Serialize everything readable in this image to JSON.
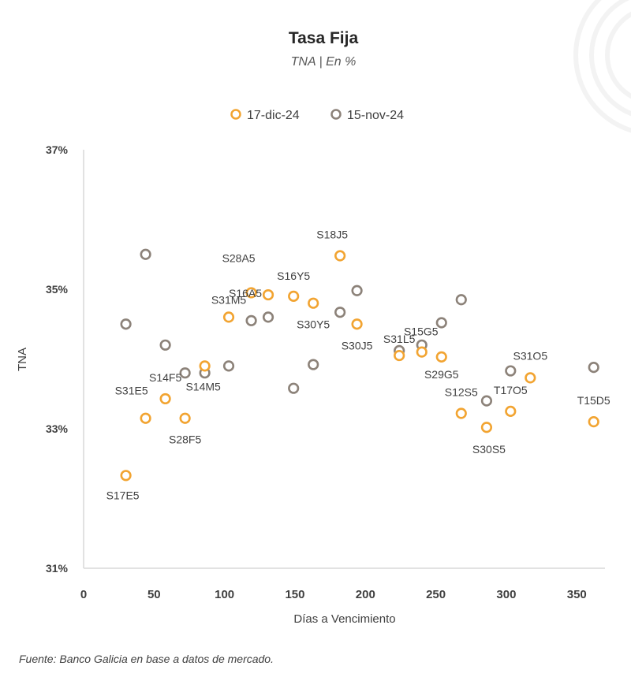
{
  "chart_data": {
    "type": "scatter",
    "title": "Tasa Fija",
    "subtitle": "TNA | En %",
    "xlabel": "Días a Vencimiento",
    "ylabel": "TNA",
    "xlim": [
      0,
      370
    ],
    "ylim": [
      31,
      37
    ],
    "xticks": [
      0,
      50,
      100,
      150,
      200,
      250,
      300,
      350
    ],
    "yticks": [
      31,
      33,
      35,
      37
    ],
    "ytick_labels": [
      "31%",
      "33%",
      "35%",
      "37%"
    ],
    "legend_position": "top-center",
    "series": [
      {
        "name": "17-dic-24",
        "color": "#f2a431",
        "points": [
          {
            "x": 30,
            "y": 32.33,
            "label": "S17E5"
          },
          {
            "x": 44,
            "y": 33.15,
            "label": "S31E5"
          },
          {
            "x": 58,
            "y": 33.43,
            "label": "S14F5"
          },
          {
            "x": 72,
            "y": 33.15,
            "label": "S28F5"
          },
          {
            "x": 86,
            "y": 33.9,
            "label": "S14M5"
          },
          {
            "x": 103,
            "y": 34.6,
            "label": "S31M5"
          },
          {
            "x": 119,
            "y": 34.95,
            "label": "S28A5"
          },
          {
            "x": 131,
            "y": 34.92,
            "label": "S16A5"
          },
          {
            "x": 149,
            "y": 34.9,
            "label": "S16Y5"
          },
          {
            "x": 163,
            "y": 34.8,
            "label": "S30Y5"
          },
          {
            "x": 182,
            "y": 35.48,
            "label": "S18J5"
          },
          {
            "x": 194,
            "y": 34.5,
            "label": "S30J5"
          },
          {
            "x": 224,
            "y": 34.05,
            "label": "S31L5"
          },
          {
            "x": 240,
            "y": 34.1,
            "label": "S15G5"
          },
          {
            "x": 254,
            "y": 34.03,
            "label": "S29G5"
          },
          {
            "x": 268,
            "y": 33.22,
            "label": "S12S5"
          },
          {
            "x": 286,
            "y": 33.02,
            "label": "S30S5"
          },
          {
            "x": 303,
            "y": 33.25,
            "label": "T17O5"
          },
          {
            "x": 317,
            "y": 33.73,
            "label": "S31O5"
          },
          {
            "x": 362,
            "y": 33.1,
            "label": "T15D5"
          }
        ]
      },
      {
        "name": "15-nov-24",
        "color": "#8c8279",
        "points": [
          {
            "x": 30,
            "y": 34.5
          },
          {
            "x": 44,
            "y": 35.5
          },
          {
            "x": 58,
            "y": 34.2
          },
          {
            "x": 72,
            "y": 33.8
          },
          {
            "x": 86,
            "y": 33.8
          },
          {
            "x": 103,
            "y": 33.9
          },
          {
            "x": 119,
            "y": 34.55
          },
          {
            "x": 131,
            "y": 34.6
          },
          {
            "x": 149,
            "y": 33.58
          },
          {
            "x": 163,
            "y": 33.92
          },
          {
            "x": 182,
            "y": 34.67
          },
          {
            "x": 194,
            "y": 34.98
          },
          {
            "x": 224,
            "y": 34.12
          },
          {
            "x": 240,
            "y": 34.2
          },
          {
            "x": 254,
            "y": 34.52
          },
          {
            "x": 268,
            "y": 34.85
          },
          {
            "x": 286,
            "y": 33.4
          },
          {
            "x": 303,
            "y": 33.83
          },
          {
            "x": 362,
            "y": 33.88
          }
        ]
      }
    ]
  },
  "source": "Fuente: Banco Galicia en base a datos de mercado."
}
